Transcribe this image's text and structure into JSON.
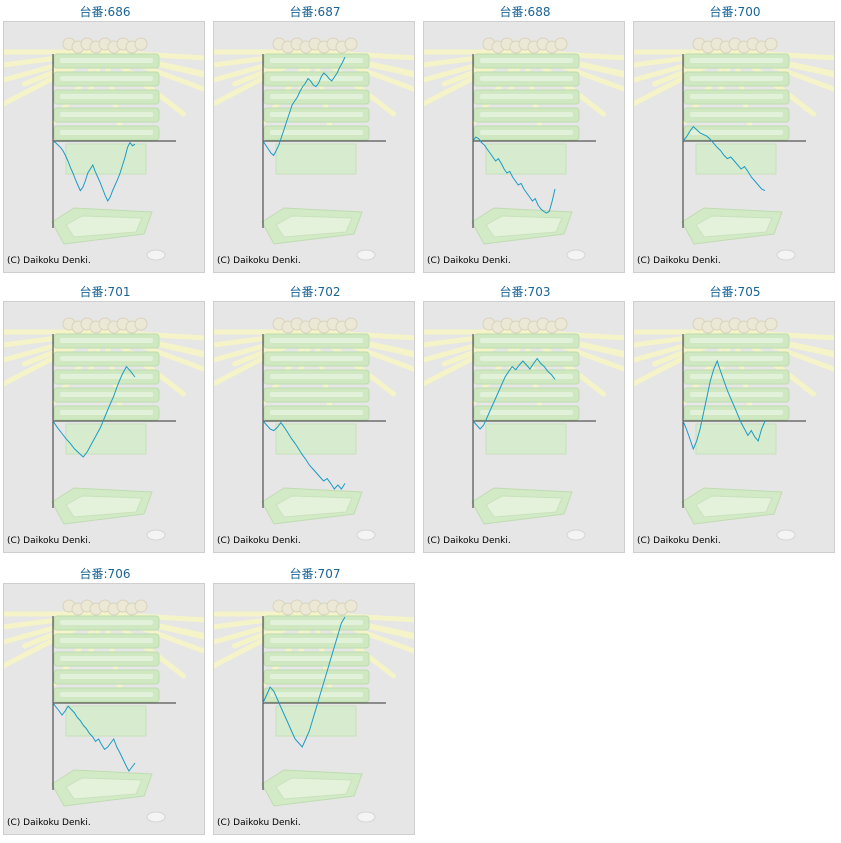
{
  "credit": "(C) Daikoku Denki.",
  "colors": {
    "line": "#1b9bc5",
    "title": "#1a6496",
    "panel_bg": "#e6e6e6"
  },
  "machines": [
    {
      "title": "台番:686",
      "chart_data": {
        "type": "line",
        "y": [
          0,
          -2,
          -5,
          -8,
          -12,
          -18,
          -25,
          -33,
          -40,
          -48,
          -55,
          -62,
          -58,
          -50,
          -40,
          -35,
          -30,
          -38,
          -45,
          -52,
          -60,
          -68,
          -75,
          -70,
          -62,
          -55,
          -48,
          -40,
          -30,
          -20,
          -8,
          -2,
          -6,
          -4
        ]
      }
    },
    {
      "title": "台番:687",
      "chart_data": {
        "type": "line",
        "y": [
          0,
          -5,
          -10,
          -15,
          -18,
          -12,
          -5,
          5,
          15,
          25,
          35,
          45,
          50,
          55,
          62,
          68,
          72,
          78,
          75,
          70,
          68,
          72,
          80,
          85,
          82,
          78,
          75,
          80,
          85,
          92,
          98,
          105
        ]
      }
    },
    {
      "title": "台番:688",
      "chart_data": {
        "type": "line",
        "y": [
          0,
          5,
          3,
          -2,
          -5,
          -10,
          -15,
          -20,
          -25,
          -22,
          -28,
          -35,
          -40,
          -38,
          -45,
          -50,
          -55,
          -53,
          -60,
          -65,
          -70,
          -75,
          -72,
          -80,
          -85,
          -88,
          -90,
          -88,
          -75,
          -60
        ]
      }
    },
    {
      "title": "台番:700",
      "chart_data": {
        "type": "line",
        "y": [
          0,
          5,
          12,
          18,
          14,
          10,
          8,
          6,
          2,
          -3,
          -8,
          -12,
          -18,
          -22,
          -20,
          -25,
          -30,
          -35,
          -32,
          -38,
          -45,
          -50,
          -55,
          -60,
          -62
        ]
      }
    },
    {
      "title": "台番:701",
      "chart_data": {
        "type": "line",
        "y": [
          0,
          -8,
          -15,
          -22,
          -28,
          -35,
          -40,
          -45,
          -38,
          -28,
          -18,
          -8,
          5,
          18,
          30,
          45,
          58,
          68,
          62,
          55
        ]
      }
    },
    {
      "title": "台番:702",
      "chart_data": {
        "type": "line",
        "y": [
          0,
          -5,
          -10,
          -12,
          -8,
          -2,
          -8,
          -15,
          -22,
          -28,
          -35,
          -42,
          -48,
          -55,
          -60,
          -65,
          -70,
          -75,
          -72,
          -78,
          -85,
          -80,
          -85,
          -78
        ]
      }
    },
    {
      "title": "台番:703",
      "chart_data": {
        "type": "line",
        "y": [
          0,
          -5,
          -10,
          -5,
          5,
          15,
          25,
          35,
          45,
          55,
          62,
          68,
          64,
          70,
          75,
          70,
          65,
          72,
          78,
          72,
          68,
          62,
          58,
          52
        ]
      }
    },
    {
      "title": "台番:705",
      "chart_data": {
        "type": "line",
        "y": [
          0,
          -10,
          -22,
          -35,
          -25,
          -10,
          10,
          30,
          50,
          65,
          75,
          62,
          50,
          38,
          28,
          18,
          8,
          -2,
          -10,
          -18,
          -12,
          -20,
          -25,
          -10,
          0
        ]
      }
    },
    {
      "title": "台番:706",
      "chart_data": {
        "type": "line",
        "y": [
          0,
          -5,
          -10,
          -15,
          -10,
          -4,
          -8,
          -12,
          -18,
          -22,
          -28,
          -32,
          -38,
          -42,
          -48,
          -45,
          -52,
          -58,
          -55,
          -50,
          -45,
          -55,
          -62,
          -70,
          -78,
          -85,
          -80,
          -75
        ]
      }
    },
    {
      "title": "台番:707",
      "chart_data": {
        "type": "line",
        "y": [
          0,
          10,
          20,
          15,
          5,
          -5,
          -15,
          -25,
          -35,
          -45,
          -50,
          -55,
          -45,
          -35,
          -20,
          -5,
          10,
          25,
          40,
          55,
          70,
          85,
          100,
          115
        ]
      }
    }
  ]
}
